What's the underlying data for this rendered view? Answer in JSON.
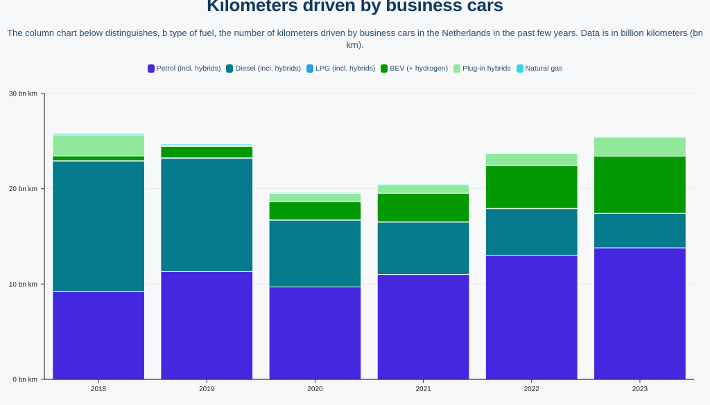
{
  "chart_data": {
    "type": "bar",
    "stacked": true,
    "title": "Kilometers driven by business cars",
    "subtitle": "The column chart below distinguishes, b type of fuel, the number of kilometers driven by business cars in the Netherlands in the past few years. Data is in billion kilometers (bn km).",
    "xlabel": "",
    "ylabel": "",
    "categories": [
      "2018",
      "2019",
      "2020",
      "2021",
      "2022",
      "2023"
    ],
    "yticks": [
      {
        "value": 0,
        "label": "0 bn km"
      },
      {
        "value": 10,
        "label": "10 bn km"
      },
      {
        "value": 20,
        "label": "20 bn km"
      },
      {
        "value": 30,
        "label": "30 bn km"
      }
    ],
    "ylim": [
      0,
      30
    ],
    "grid": true,
    "legend_position": "top-center",
    "series": [
      {
        "name": "Petrol (incl. hybrids)",
        "color": "#4428e0",
        "values": [
          9.2,
          11.3,
          9.7,
          11.0,
          13.0,
          13.8
        ]
      },
      {
        "name": "Diesel (incl. hybrids)",
        "color": "#057a8c",
        "values": [
          13.7,
          11.9,
          7.0,
          5.5,
          4.9,
          3.6
        ]
      },
      {
        "name": "LPG (incl. hybrids)",
        "color": "#26a3e0",
        "values": [
          0.05,
          0.05,
          0.03,
          0.03,
          0.03,
          0.02
        ]
      },
      {
        "name": "BEV (+ hydrogen)",
        "color": "#039903",
        "values": [
          0.5,
          1.2,
          1.9,
          3.0,
          4.5,
          6.0
        ]
      },
      {
        "name": "Plug-in hybrids",
        "color": "#8fe89b",
        "values": [
          2.2,
          0.1,
          0.9,
          0.9,
          1.3,
          2.0
        ]
      },
      {
        "name": "Natural gas",
        "color": "#3dd6df",
        "values": [
          0.15,
          0.15,
          0.1,
          0.1,
          0.08,
          0.08
        ]
      }
    ]
  }
}
